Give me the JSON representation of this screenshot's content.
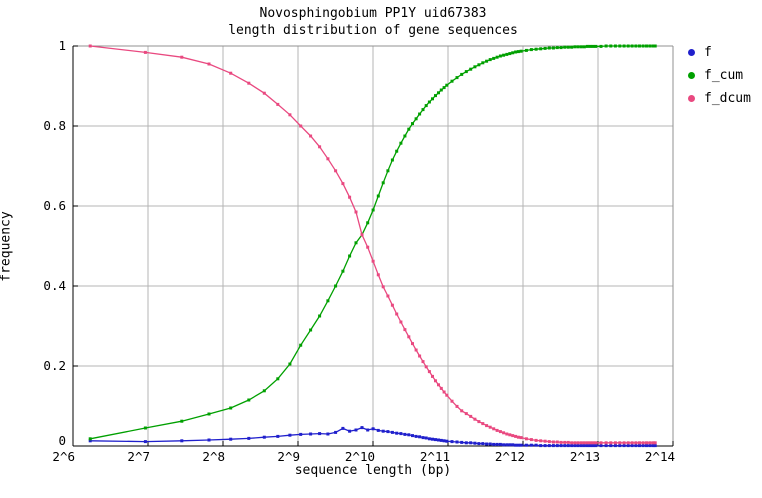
{
  "title": {
    "line1": "Novosphingobium PP1Y uid67383",
    "line2": "length distribution of gene sequences"
  },
  "axes": {
    "x_label": "sequence length (bp)",
    "y_label": "frequency",
    "x_ticks": [
      {
        "label": "2^6",
        "log2": 6
      },
      {
        "label": "2^7",
        "log2": 7
      },
      {
        "label": "2^8",
        "log2": 8
      },
      {
        "label": "2^9",
        "log2": 9
      },
      {
        "label": "2^10",
        "log2": 10
      },
      {
        "label": "2^11",
        "log2": 11
      },
      {
        "label": "2^12",
        "log2": 12
      },
      {
        "label": "2^13",
        "log2": 13
      },
      {
        "label": "2^14",
        "log2": 14
      }
    ],
    "y_ticks": [
      {
        "label": "0",
        "value": 0
      },
      {
        "label": "0.2",
        "value": 0.2
      },
      {
        "label": "0.4",
        "value": 0.4
      },
      {
        "label": "0.6",
        "value": 0.6
      },
      {
        "label": "0.8",
        "value": 0.8
      },
      {
        "label": "1",
        "value": 1
      }
    ]
  },
  "legend": {
    "items": [
      {
        "label": "f",
        "color": "#2020cc"
      },
      {
        "label": "f_cum",
        "color": "#00a000"
      },
      {
        "label": "f_dcum",
        "color": "#e94980"
      }
    ]
  },
  "colors": {
    "grid": "#b4b4b4",
    "border_gray": "#909090",
    "axis_black": "#000000",
    "background": "#ffffff"
  },
  "chart_data": {
    "type": "line",
    "title": "Novosphingobium PP1Y uid67383 — length distribution of gene sequences",
    "xlabel": "sequence length (bp)",
    "ylabel": "frequency",
    "x_scale": "log2",
    "x_log2_range": [
      6,
      14
    ],
    "ylim": [
      0,
      1
    ],
    "grid": true,
    "legend_position": "top-right-outside",
    "x_bp": [
      75,
      125,
      175,
      225,
      275,
      325,
      375,
      425,
      475,
      525,
      575,
      625,
      675,
      725,
      775,
      825,
      875,
      925,
      975,
      1025,
      1075,
      1125,
      1175,
      1225,
      1275,
      1325,
      1375,
      1425,
      1475,
      1525,
      1575,
      1625,
      1675,
      1725,
      1775,
      1825,
      1875,
      1925,
      1975,
      2025,
      2125,
      2225,
      2325,
      2425,
      2525,
      2625,
      2725,
      2825,
      2925,
      3025,
      3125,
      3225,
      3325,
      3425,
      3525,
      3625,
      3725,
      3825,
      3925,
      4025,
      4225,
      4425,
      4625,
      4825,
      5025,
      5225,
      5425,
      5625,
      5825,
      6025,
      6225,
      6425,
      6625,
      6825,
      7025,
      7225,
      7425,
      7625,
      7825,
      8025,
      8425,
      8825,
      9225,
      9625,
      10025,
      10425,
      10825,
      11225,
      11625,
      12025,
      12425,
      12825,
      13225,
      13625,
      13900
    ],
    "series": [
      {
        "name": "f",
        "color": "#2020cc",
        "values": [
          0.013,
          0.011,
          0.013,
          0.015,
          0.017,
          0.019,
          0.022,
          0.024,
          0.027,
          0.029,
          0.03,
          0.031,
          0.03,
          0.034,
          0.044,
          0.037,
          0.04,
          0.046,
          0.04,
          0.043,
          0.039,
          0.037,
          0.036,
          0.034,
          0.032,
          0.031,
          0.029,
          0.028,
          0.026,
          0.024,
          0.023,
          0.021,
          0.02,
          0.018,
          0.017,
          0.016,
          0.015,
          0.014,
          0.013,
          0.012,
          0.011,
          0.01,
          0.009,
          0.008,
          0.008,
          0.007,
          0.006,
          0.006,
          0.005,
          0.005,
          0.004,
          0.004,
          0.004,
          0.003,
          0.003,
          0.003,
          0.003,
          0.002,
          0.002,
          0.002,
          0.002,
          0.002,
          0.002,
          0.001,
          0.001,
          0.001,
          0.001,
          0.001,
          0.001,
          0.001,
          0.001,
          0.001,
          0.001,
          0.001,
          0.001,
          0.001,
          0.001,
          0.001,
          0.001,
          0.001,
          0.001,
          0.001,
          0.001,
          0.001,
          0.001,
          0.001,
          0.001,
          0.001,
          0.001,
          0.001,
          0.001,
          0.001,
          0.001,
          0.001,
          0.001
        ]
      },
      {
        "name": "f_cum",
        "color": "#00a000",
        "values": [
          0.018,
          0.045,
          0.062,
          0.08,
          0.095,
          0.115,
          0.138,
          0.168,
          0.205,
          0.252,
          0.29,
          0.325,
          0.363,
          0.4,
          0.437,
          0.475,
          0.508,
          0.528,
          0.558,
          0.59,
          0.625,
          0.658,
          0.688,
          0.715,
          0.737,
          0.757,
          0.775,
          0.792,
          0.806,
          0.818,
          0.83,
          0.841,
          0.851,
          0.86,
          0.868,
          0.876,
          0.883,
          0.89,
          0.896,
          0.902,
          0.912,
          0.921,
          0.929,
          0.936,
          0.942,
          0.948,
          0.953,
          0.958,
          0.962,
          0.966,
          0.969,
          0.972,
          0.975,
          0.977,
          0.979,
          0.981,
          0.983,
          0.985,
          0.986,
          0.987,
          0.989,
          0.991,
          0.992,
          0.993,
          0.994,
          0.995,
          0.995,
          0.996,
          0.996,
          0.997,
          0.997,
          0.997,
          0.998,
          0.998,
          0.998,
          0.998,
          0.999,
          0.999,
          0.999,
          0.999,
          0.999,
          1.0,
          1.0,
          1.0,
          1.0,
          1.0,
          1.0,
          1.0,
          1.0,
          1.0,
          1.0,
          1.0,
          1.0,
          1.0,
          1.0
        ]
      },
      {
        "name": "f_dcum",
        "color": "#e94980",
        "values": [
          1.0,
          0.984,
          0.972,
          0.955,
          0.932,
          0.907,
          0.882,
          0.854,
          0.828,
          0.8,
          0.775,
          0.748,
          0.718,
          0.688,
          0.656,
          0.622,
          0.585,
          0.528,
          0.497,
          0.462,
          0.428,
          0.398,
          0.375,
          0.352,
          0.33,
          0.31,
          0.291,
          0.273,
          0.256,
          0.24,
          0.225,
          0.211,
          0.198,
          0.186,
          0.174,
          0.163,
          0.153,
          0.144,
          0.135,
          0.127,
          0.112,
          0.099,
          0.088,
          0.081,
          0.074,
          0.067,
          0.061,
          0.056,
          0.051,
          0.047,
          0.043,
          0.039,
          0.036,
          0.033,
          0.03,
          0.028,
          0.026,
          0.024,
          0.022,
          0.021,
          0.018,
          0.016,
          0.014,
          0.013,
          0.012,
          0.011,
          0.01,
          0.01,
          0.009,
          0.009,
          0.009,
          0.008,
          0.008,
          0.008,
          0.008,
          0.008,
          0.008,
          0.008,
          0.008,
          0.008,
          0.008,
          0.008,
          0.008,
          0.008,
          0.008,
          0.008,
          0.008,
          0.008,
          0.008,
          0.008,
          0.008,
          0.008,
          0.008,
          0.008,
          0.008
        ]
      }
    ]
  }
}
